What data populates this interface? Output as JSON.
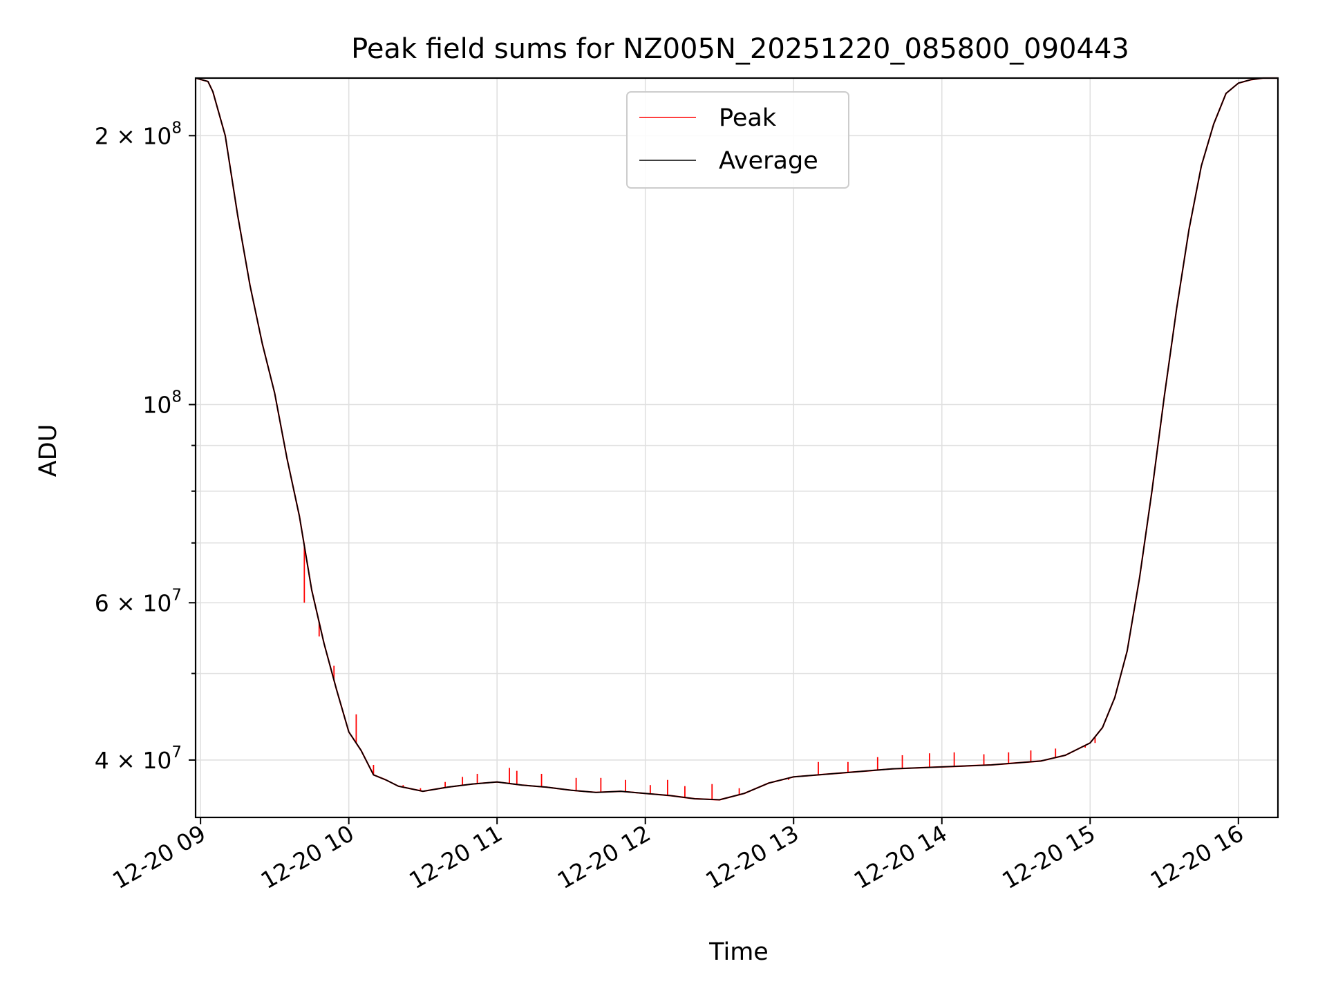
{
  "chart_data": {
    "type": "line",
    "title": "Peak field sums for NZ005N_20251220_085800_090443",
    "xlabel": "Time",
    "ylabel": "ADU",
    "y_scale": "log",
    "grid": true,
    "legend_position": "top-center",
    "xlim": [
      "2025-12-20 08:58",
      "2025-12-20 16:16"
    ],
    "ylim": [
      34500000,
      232000000
    ],
    "x_ticks": [
      {
        "value": "2025-12-20 09:00",
        "label": "12-20 09"
      },
      {
        "value": "2025-12-20 10:00",
        "label": "12-20 10"
      },
      {
        "value": "2025-12-20 11:00",
        "label": "12-20 11"
      },
      {
        "value": "2025-12-20 12:00",
        "label": "12-20 12"
      },
      {
        "value": "2025-12-20 13:00",
        "label": "12-20 13"
      },
      {
        "value": "2025-12-20 14:00",
        "label": "12-20 14"
      },
      {
        "value": "2025-12-20 15:00",
        "label": "12-20 15"
      },
      {
        "value": "2025-12-20 16:00",
        "label": "12-20 16"
      }
    ],
    "y_major_ticks": [
      {
        "value": 40000000,
        "mantissa": "4 × 10",
        "exp": "7"
      },
      {
        "value": 60000000,
        "mantissa": "6 × 10",
        "exp": "7"
      },
      {
        "value": 100000000,
        "mantissa": "10",
        "exp": "8"
      },
      {
        "value": 200000000,
        "mantissa": "2 × 10",
        "exp": "8"
      }
    ],
    "y_minor_ticks": [
      50000000,
      70000000,
      80000000,
      90000000
    ],
    "series": [
      {
        "name": "Peak",
        "color": "#ff0000",
        "spikes": [
          [
            "2025-12-20 09:42",
            60000000
          ],
          [
            "2025-12-20 09:48",
            55000000
          ],
          [
            "2025-12-20 09:54",
            51000000
          ],
          [
            "2025-12-20 10:03",
            45000000
          ],
          [
            "2025-12-20 10:10",
            39500000
          ],
          [
            "2025-12-20 10:22",
            37500000
          ],
          [
            "2025-12-20 10:29",
            37200000
          ],
          [
            "2025-12-20 10:39",
            37800000
          ],
          [
            "2025-12-20 10:46",
            38300000
          ],
          [
            "2025-12-20 10:52",
            38600000
          ],
          [
            "2025-12-20 11:05",
            39200000
          ],
          [
            "2025-12-20 11:08",
            38900000
          ],
          [
            "2025-12-20 11:18",
            38600000
          ],
          [
            "2025-12-20 11:32",
            38200000
          ],
          [
            "2025-12-20 11:42",
            38200000
          ],
          [
            "2025-12-20 11:52",
            38000000
          ],
          [
            "2025-12-20 12:02",
            37500000
          ],
          [
            "2025-12-20 12:09",
            38000000
          ],
          [
            "2025-12-20 12:16",
            37400000
          ],
          [
            "2025-12-20 12:27",
            37600000
          ],
          [
            "2025-12-20 12:38",
            37200000
          ],
          [
            "2025-12-20 12:58",
            38000000
          ],
          [
            "2025-12-20 13:10",
            39800000
          ],
          [
            "2025-12-20 13:22",
            39800000
          ],
          [
            "2025-12-20 13:34",
            40300000
          ],
          [
            "2025-12-20 13:44",
            40500000
          ],
          [
            "2025-12-20 13:55",
            40700000
          ],
          [
            "2025-12-20 14:05",
            40800000
          ],
          [
            "2025-12-20 14:17",
            40600000
          ],
          [
            "2025-12-20 14:27",
            40800000
          ],
          [
            "2025-12-20 14:36",
            41000000
          ],
          [
            "2025-12-20 14:46",
            41200000
          ],
          [
            "2025-12-20 14:58",
            41300000
          ],
          [
            "2025-12-20 15:02",
            41800000
          ]
        ]
      },
      {
        "name": "Average",
        "color": "#000000",
        "x": [
          "2025-12-20 08:58",
          "2025-12-20 09:03",
          "2025-12-20 09:05",
          "2025-12-20 09:10",
          "2025-12-20 09:15",
          "2025-12-20 09:20",
          "2025-12-20 09:25",
          "2025-12-20 09:30",
          "2025-12-20 09:35",
          "2025-12-20 09:40",
          "2025-12-20 09:45",
          "2025-12-20 09:50",
          "2025-12-20 09:55",
          "2025-12-20 10:00",
          "2025-12-20 10:05",
          "2025-12-20 10:10",
          "2025-12-20 10:15",
          "2025-12-20 10:20",
          "2025-12-20 10:30",
          "2025-12-20 10:40",
          "2025-12-20 10:50",
          "2025-12-20 11:00",
          "2025-12-20 11:10",
          "2025-12-20 11:20",
          "2025-12-20 11:30",
          "2025-12-20 11:40",
          "2025-12-20 11:50",
          "2025-12-20 12:00",
          "2025-12-20 12:10",
          "2025-12-20 12:20",
          "2025-12-20 12:30",
          "2025-12-20 12:40",
          "2025-12-20 12:50",
          "2025-12-20 13:00",
          "2025-12-20 13:20",
          "2025-12-20 13:40",
          "2025-12-20 14:00",
          "2025-12-20 14:20",
          "2025-12-20 14:40",
          "2025-12-20 14:50",
          "2025-12-20 15:00",
          "2025-12-20 15:05",
          "2025-12-20 15:10",
          "2025-12-20 15:15",
          "2025-12-20 15:20",
          "2025-12-20 15:25",
          "2025-12-20 15:30",
          "2025-12-20 15:35",
          "2025-12-20 15:40",
          "2025-12-20 15:45",
          "2025-12-20 15:50",
          "2025-12-20 15:55",
          "2025-12-20 16:00",
          "2025-12-20 16:05",
          "2025-12-20 16:10",
          "2025-12-20 16:16"
        ],
        "values": [
          232000000,
          230000000,
          224000000,
          200000000,
          163000000,
          136000000,
          117000000,
          103000000,
          87000000,
          75000000,
          62000000,
          54000000,
          48000000,
          43000000,
          41000000,
          38500000,
          38000000,
          37400000,
          36900000,
          37300000,
          37600000,
          37800000,
          37500000,
          37300000,
          37000000,
          36800000,
          36900000,
          36700000,
          36500000,
          36200000,
          36100000,
          36700000,
          37700000,
          38300000,
          38700000,
          39100000,
          39300000,
          39500000,
          39900000,
          40500000,
          41800000,
          43500000,
          47000000,
          53000000,
          64000000,
          80000000,
          102000000,
          128000000,
          157000000,
          185000000,
          206000000,
          223000000,
          229000000,
          231000000,
          232000000,
          232000000
        ]
      }
    ]
  }
}
